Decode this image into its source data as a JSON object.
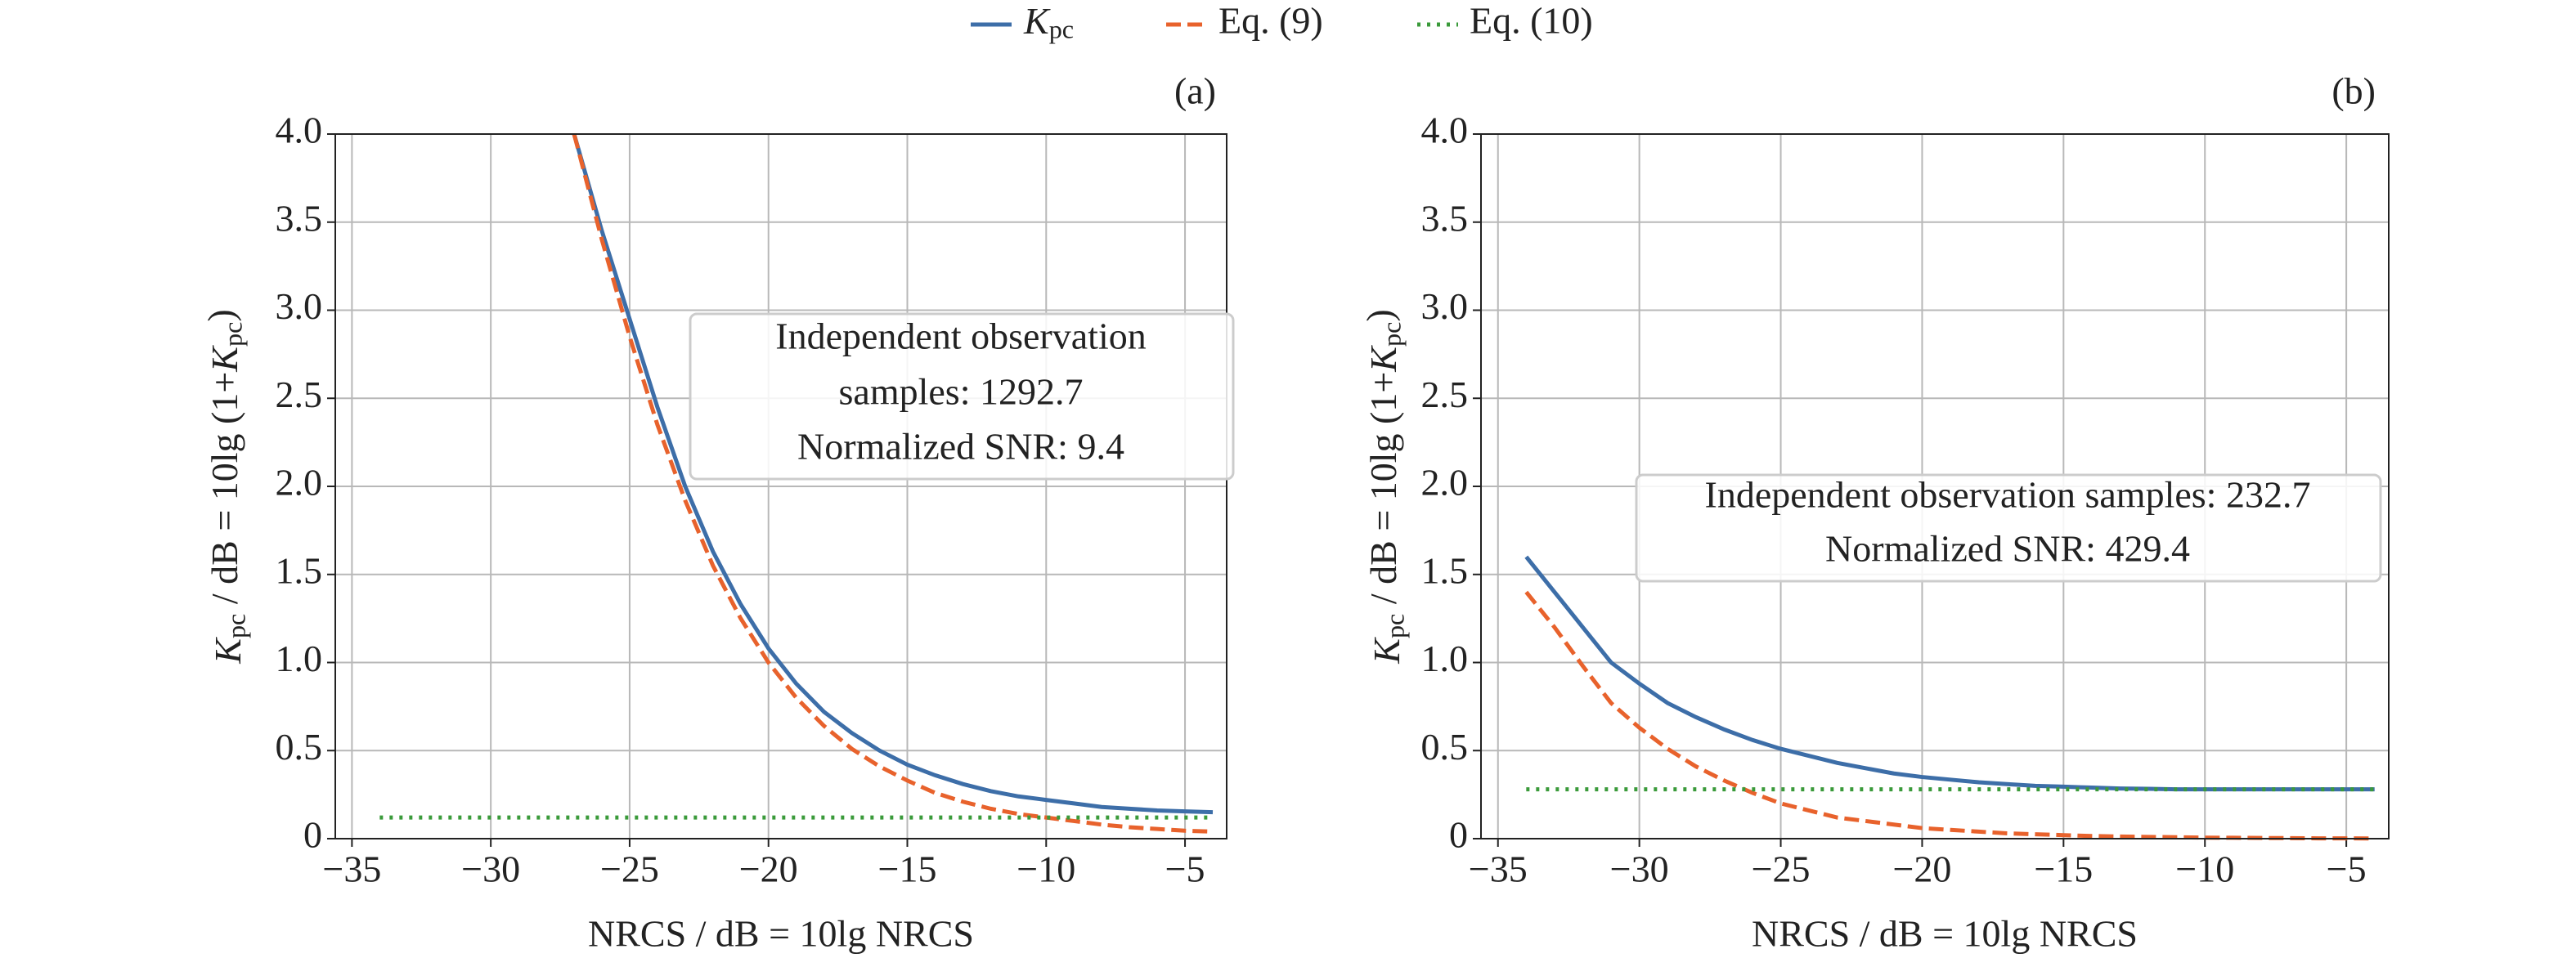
{
  "chart_data": [
    {
      "type": "line",
      "label": "(a)",
      "xlabel": "NRCS / dB = 10lg NRCS",
      "ylabel": "Kpc / dB = 10lg (1+Kpc)",
      "annotation": [
        "Independent observation",
        "samples: 1292.7",
        "Normalized SNR: 9.4"
      ],
      "x": [
        -34,
        -33,
        -32,
        -31,
        -30,
        -29,
        -28,
        -27,
        -26,
        -25,
        -24,
        -23,
        -22,
        -21,
        -20,
        -19,
        -18,
        -17,
        -16,
        -15,
        -14,
        -13,
        -12,
        -11,
        -10,
        -9,
        -8,
        -7,
        -6,
        -5,
        -4
      ],
      "series": [
        {
          "name": "Kpc",
          "color": "#3d6ea8",
          "dash": "solid",
          "values": [
            null,
            null,
            null,
            null,
            null,
            null,
            null,
            4.0,
            3.45,
            2.95,
            2.45,
            2.0,
            1.63,
            1.33,
            1.08,
            0.88,
            0.72,
            0.6,
            0.5,
            0.42,
            0.36,
            0.31,
            0.27,
            0.24,
            0.22,
            0.2,
            0.18,
            0.17,
            0.16,
            0.155,
            0.15
          ]
        },
        {
          "name": "Eq. (9)",
          "color": "#e8622c",
          "dash": "dashed",
          "values": [
            null,
            null,
            null,
            null,
            null,
            null,
            null,
            4.0,
            3.4,
            2.85,
            2.35,
            1.92,
            1.55,
            1.25,
            1.0,
            0.8,
            0.64,
            0.51,
            0.41,
            0.33,
            0.26,
            0.21,
            0.17,
            0.14,
            0.12,
            0.1,
            0.08,
            0.065,
            0.055,
            0.045,
            0.04
          ]
        },
        {
          "name": "Eq. (10)",
          "color": "#3a9a3a",
          "dash": "dotted",
          "values": [
            0.12,
            0.12,
            0.12,
            0.12,
            0.12,
            0.12,
            0.12,
            0.12,
            0.12,
            0.12,
            0.12,
            0.12,
            0.12,
            0.12,
            0.12,
            0.12,
            0.12,
            0.12,
            0.12,
            0.12,
            0.12,
            0.12,
            0.12,
            0.12,
            0.12,
            0.12,
            0.12,
            0.12,
            0.12,
            0.12,
            0.12
          ]
        }
      ],
      "xlim": [
        -35.6,
        -3.5
      ],
      "xticks": [
        {
          "value": -35,
          "label": "−35"
        },
        {
          "value": -30,
          "label": "−30"
        },
        {
          "value": -25,
          "label": "−25"
        },
        {
          "value": -20,
          "label": "−20"
        },
        {
          "value": -15,
          "label": "−15"
        },
        {
          "value": -10,
          "label": "−10"
        },
        {
          "value": -5,
          "label": "−5"
        }
      ],
      "ylim": [
        0,
        4
      ],
      "yticks": [
        0,
        0.5,
        {
          "value": 1,
          "label": "1.0"
        },
        1.5,
        {
          "value": 2,
          "label": "2.0"
        },
        2.5,
        {
          "value": 3,
          "label": "3.0"
        },
        3.5,
        {
          "value": 4,
          "label": "4.0"
        }
      ],
      "grid": true
    },
    {
      "type": "line",
      "label": "(b)",
      "xlabel": "NRCS / dB = 10lg NRCS",
      "ylabel": "Kpc / dB = 10lg (1+Kpc)",
      "annotation": [
        "Independent observation samples: 232.7",
        "Normalized SNR: 429.4"
      ],
      "x": [
        -34,
        -33,
        -32,
        -31,
        -30,
        -29,
        -28,
        -27,
        -26,
        -25,
        -24,
        -23,
        -22,
        -21,
        -20,
        -19,
        -18,
        -17,
        -16,
        -15,
        -14,
        -13,
        -12,
        -11,
        -10,
        -9,
        -8,
        -7,
        -6,
        -5,
        -4
      ],
      "series": [
        {
          "color": "#3d6ea8",
          "dash": "solid",
          "values": [
            1.6,
            1.4,
            1.2,
            1.0,
            0.88,
            0.77,
            0.69,
            0.62,
            0.56,
            0.51,
            0.47,
            0.43,
            0.4,
            0.37,
            0.35,
            0.335,
            0.32,
            0.31,
            0.3,
            0.295,
            0.29,
            0.285,
            0.283,
            0.28,
            0.28,
            0.28,
            0.28,
            0.28,
            0.28,
            0.28,
            0.28
          ]
        },
        {
          "color": "#e8622c",
          "dash": "dashed",
          "values": [
            1.4,
            1.2,
            0.98,
            0.77,
            0.63,
            0.51,
            0.41,
            0.33,
            0.26,
            0.2,
            0.16,
            0.12,
            0.1,
            0.08,
            0.06,
            0.05,
            0.04,
            0.03,
            0.025,
            0.02,
            0.015,
            0.012,
            0.01,
            0.008,
            0.006,
            0.005,
            0.004,
            0.003,
            0.002,
            0.002,
            0.001
          ]
        },
        {
          "color": "#3a9a3a",
          "dash": "dotted",
          "values": [
            0.28,
            0.28,
            0.28,
            0.28,
            0.28,
            0.28,
            0.28,
            0.28,
            0.28,
            0.28,
            0.28,
            0.28,
            0.28,
            0.28,
            0.28,
            0.28,
            0.28,
            0.28,
            0.28,
            0.28,
            0.28,
            0.28,
            0.28,
            0.28,
            0.28,
            0.28,
            0.28,
            0.28,
            0.28,
            0.28,
            0.28
          ]
        }
      ],
      "xlim": [
        -35.6,
        -3.5
      ],
      "xticks": [
        {
          "value": -35,
          "label": "−35"
        },
        {
          "value": -30,
          "label": "−30"
        },
        {
          "value": -25,
          "label": "−25"
        },
        {
          "value": -20,
          "label": "−20"
        },
        {
          "value": -15,
          "label": "−15"
        },
        {
          "value": -10,
          "label": "−10"
        },
        {
          "value": -5,
          "label": "−5"
        }
      ],
      "ylim": [
        0,
        4
      ],
      "yticks": [
        0,
        0.5,
        {
          "value": 1,
          "label": "1.0"
        },
        1.5,
        {
          "value": 2,
          "label": "2.0"
        },
        2.5,
        {
          "value": 3,
          "label": "3.0"
        },
        3.5,
        {
          "value": 4,
          "label": "4.0"
        }
      ],
      "grid": true
    }
  ]
}
